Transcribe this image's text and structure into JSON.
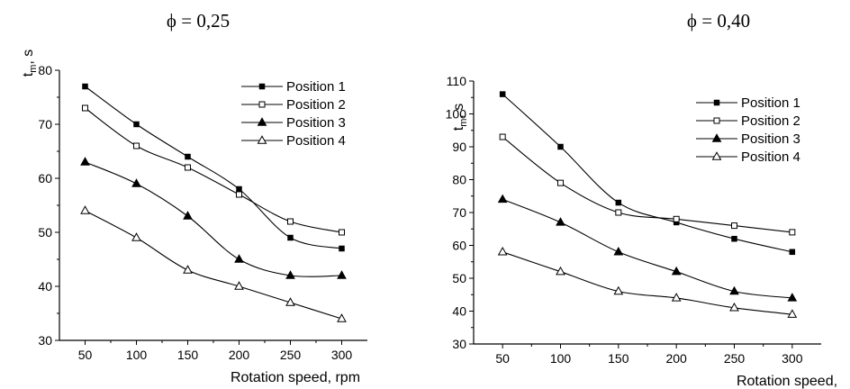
{
  "chart_data": [
    {
      "type": "line",
      "title": "ϕ = 0,25",
      "xlabel": "Rotation speed, rpm",
      "ylabel_main": "t",
      "ylabel_sub": "m",
      "ylabel_tail": ", s",
      "x": [
        50,
        100,
        150,
        200,
        250,
        300
      ],
      "xlim": [
        25,
        325
      ],
      "ylim": [
        30,
        80
      ],
      "yticks": [
        30,
        40,
        50,
        60,
        70,
        80
      ],
      "xticks": [
        50,
        100,
        150,
        200,
        250,
        300
      ],
      "legend_position": "top-right",
      "series": [
        {
          "name": "Position 1",
          "marker": "square-filled",
          "values": [
            77,
            70,
            64,
            58,
            49,
            47
          ]
        },
        {
          "name": "Position 2",
          "marker": "square-open",
          "values": [
            73,
            66,
            62,
            57,
            52,
            50
          ]
        },
        {
          "name": "Position 3",
          "marker": "triangle-filled",
          "values": [
            63,
            59,
            53,
            45,
            42,
            42
          ]
        },
        {
          "name": "Position 4",
          "marker": "triangle-open",
          "values": [
            54,
            49,
            43,
            40,
            37,
            34
          ]
        }
      ]
    },
    {
      "type": "line",
      "title": "ϕ = 0,40",
      "xlabel": "Rotation speed,",
      "ylabel_main": "t",
      "ylabel_sub": "m",
      "ylabel_tail": ", s",
      "x": [
        50,
        100,
        150,
        200,
        250,
        300
      ],
      "xlim": [
        25,
        325
      ],
      "ylim": [
        30,
        110
      ],
      "yticks": [
        30,
        40,
        50,
        60,
        70,
        80,
        90,
        100,
        110
      ],
      "xticks": [
        50,
        100,
        150,
        200,
        250,
        300
      ],
      "legend_position": "top-right",
      "series": [
        {
          "name": "Position 1",
          "marker": "square-filled",
          "values": [
            106,
            90,
            73,
            67,
            62,
            58
          ]
        },
        {
          "name": "Position 2",
          "marker": "square-open",
          "values": [
            93,
            79,
            70,
            68,
            66,
            64
          ]
        },
        {
          "name": "Position 3",
          "marker": "triangle-filled",
          "values": [
            74,
            67,
            58,
            52,
            46,
            44
          ]
        },
        {
          "name": "Position 4",
          "marker": "triangle-open",
          "values": [
            58,
            52,
            46,
            44,
            41,
            39
          ]
        }
      ]
    }
  ]
}
